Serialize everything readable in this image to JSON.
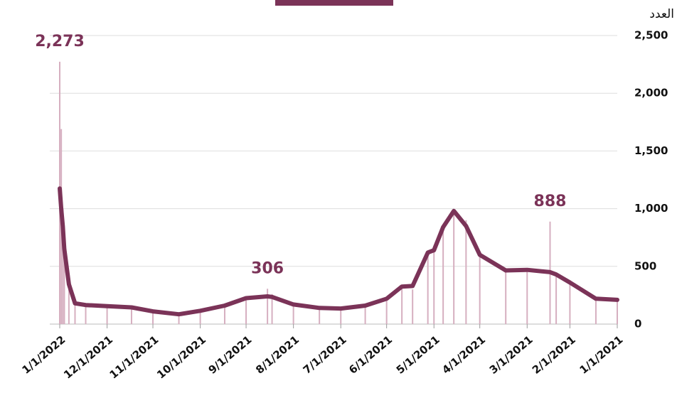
{
  "chart_data": {
    "type": "bar-line",
    "y_label": "العدد",
    "x": [
      "1/1/2021",
      "1/15/2021",
      "2/1/2021",
      "2/10/2021",
      "2/14/2021",
      "3/1/2021",
      "3/15/2021",
      "4/1/2021",
      "4/10/2021",
      "4/18/2021",
      "4/25/2021",
      "5/1/2021",
      "5/5/2021",
      "5/15/2021",
      "5/22/2021",
      "6/1/2021",
      "6/15/2021",
      "7/1/2021",
      "7/15/2021",
      "8/1/2021",
      "8/15/2021",
      "8/18/2021",
      "9/1/2021",
      "9/15/2021",
      "10/1/2021",
      "10/15/2021",
      "11/1/2021",
      "11/15/2021",
      "12/1/2021",
      "12/15/2021",
      "12/22/2021",
      "12/26/2021",
      "12/29/2021",
      "12/30/2021",
      "12/31/2021",
      "1/1/2022"
    ],
    "series": [
      {
        "type": "bar",
        "color": "#d6afc0",
        "values": [
          200,
          220,
          350,
          420,
          888,
          460,
          450,
          620,
          900,
          950,
          820,
          680,
          600,
          300,
          330,
          200,
          160,
          140,
          150,
          180,
          260,
          306,
          220,
          160,
          110,
          80,
          110,
          150,
          150,
          170,
          190,
          420,
          740,
          1000,
          1690,
          2273
        ],
        "value_labels": [
          null,
          null,
          null,
          null,
          "888",
          null,
          null,
          null,
          null,
          null,
          null,
          null,
          null,
          null,
          null,
          null,
          null,
          null,
          null,
          null,
          null,
          "306",
          null,
          null,
          null,
          null,
          null,
          null,
          null,
          null,
          null,
          null,
          null,
          null,
          null,
          "2,273"
        ]
      },
      {
        "type": "line",
        "color": "#7b3358",
        "values": [
          210,
          220,
          360,
          430,
          450,
          470,
          465,
          600,
          850,
          980,
          840,
          640,
          620,
          330,
          325,
          220,
          160,
          135,
          140,
          170,
          235,
          240,
          225,
          160,
          115,
          85,
          110,
          145,
          155,
          165,
          180,
          345,
          650,
          850,
          1000,
          1175
        ]
      }
    ],
    "xlim": [
      "1/1/2021",
      "1/1/2022"
    ],
    "x_reversed": true,
    "xticks": [
      "1/1/2021",
      "2/1/2021",
      "3/1/2021",
      "4/1/2021",
      "5/1/2021",
      "6/1/2021",
      "7/1/2021",
      "8/1/2021",
      "9/1/2021",
      "10/1/2021",
      "11/1/2021",
      "12/1/2021",
      "1/1/2022"
    ],
    "ylim": [
      0,
      2500
    ],
    "yticks": [
      0,
      500,
      {
        "value": 1000,
        "label": "1,000"
      },
      {
        "value": 1500,
        "label": "1,500"
      },
      {
        "value": 2000,
        "label": "2,000"
      },
      {
        "value": 2500,
        "label": "2,500"
      }
    ],
    "grid": true
  }
}
